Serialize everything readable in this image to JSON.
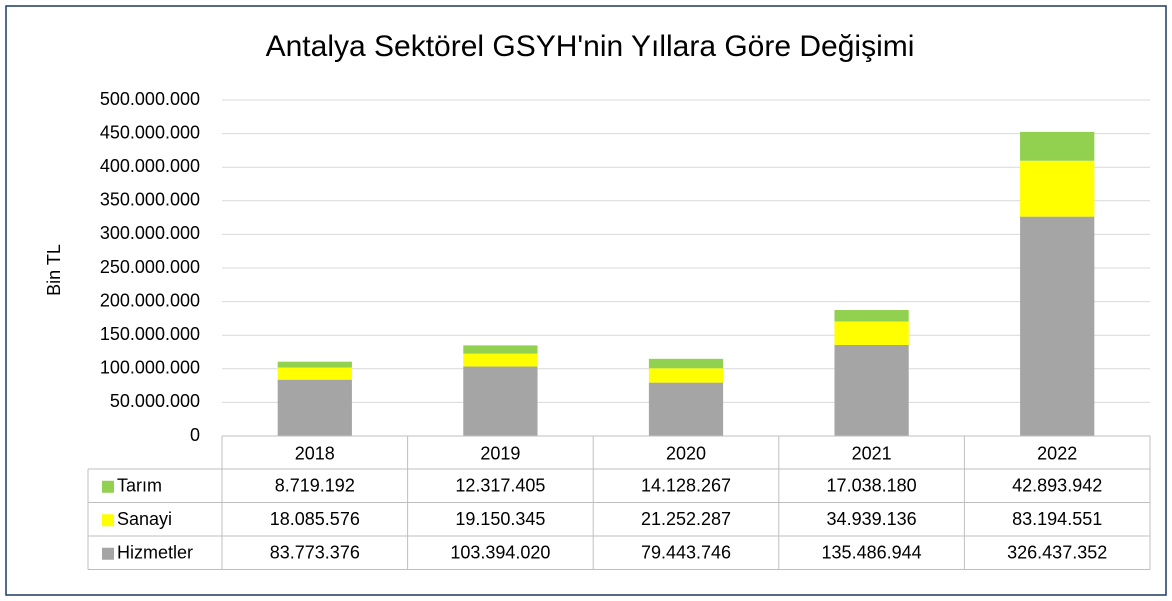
{
  "chart_data": {
    "type": "stacked_bar",
    "title": "Antalya Sektörel GSYH'nin Yıllara Göre Değişimi",
    "y_label": "Bin TL",
    "categories": [
      "2018",
      "2019",
      "2020",
      "2021",
      "2022"
    ],
    "series": [
      {
        "name": "Tarım",
        "color": "#92d050",
        "values": [
          8719192,
          12317405,
          14128267,
          17038180,
          42893942
        ],
        "value_labels": [
          "8.719.192",
          "12.317.405",
          "14.128.267",
          "17.038.180",
          "42.893.942"
        ]
      },
      {
        "name": "Sanayi",
        "color": "#ffff00",
        "values": [
          18085576,
          19150345,
          21252287,
          34939136,
          83194551
        ],
        "value_labels": [
          "18.085.576",
          "19.150.345",
          "21.252.287",
          "34.939.136",
          "83.194.551"
        ]
      },
      {
        "name": "Hizmetler",
        "color": "#a5a5a5",
        "values": [
          83773376,
          103394020,
          79443746,
          135486944,
          326437352
        ],
        "value_labels": [
          "83.773.376",
          "103.394.020",
          "79.443.746",
          "135.486.944",
          "326.437.352"
        ]
      }
    ],
    "stack_order": [
      "Hizmetler",
      "Sanayi",
      "Tarım"
    ],
    "ylim": [
      0,
      500000000
    ],
    "yticks": [
      0,
      {
        "value": 50000000,
        "label": "50.000.000"
      },
      {
        "value": 100000000,
        "label": "100.000.000"
      },
      {
        "value": 150000000,
        "label": "150.000.000"
      },
      {
        "value": 200000000,
        "label": "200.000.000"
      },
      {
        "value": 250000000,
        "label": "250.000.000"
      },
      {
        "value": 300000000,
        "label": "300.000.000"
      },
      {
        "value": 350000000,
        "label": "350.000.000"
      },
      {
        "value": 400000000,
        "label": "400.000.000"
      },
      {
        "value": 450000000,
        "label": "450.000.000"
      },
      {
        "value": 500000000,
        "label": "500.000.000"
      }
    ],
    "grid": true,
    "data_table": true
  }
}
